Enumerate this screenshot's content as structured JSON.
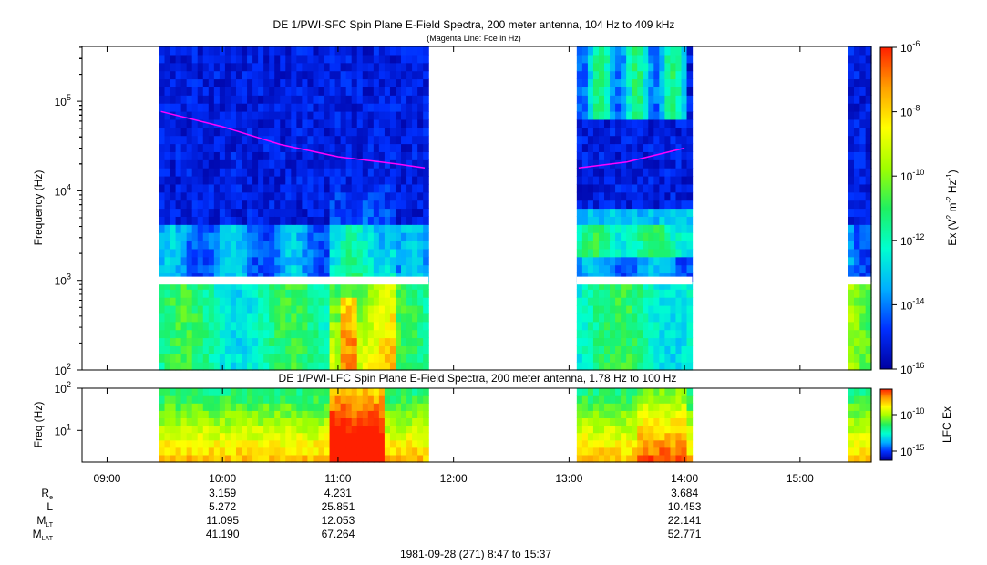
{
  "chart_data": [
    {
      "type": "heatmap",
      "title": "DE 1/PWI-SFC  Spin Plane E-Field Spectra, 200 meter antenna, 104 Hz to 409 kHz",
      "subtitle": "(Magenta Line: Fce in Hz)",
      "ylabel": "Frequency (Hz)",
      "yscale": "log",
      "ylim": [
        100,
        409000
      ],
      "y_ticks": [
        {
          "exp": "2"
        },
        {
          "exp": "3"
        },
        {
          "exp": "4"
        },
        {
          "exp": "5"
        }
      ],
      "y_tick_base": "10",
      "colorbar": {
        "label_main": "Ex (V",
        "label_sup1": "2",
        "label_mid": " m",
        "label_sup2": "-2",
        "label_mid2": " Hz",
        "label_sup3": "-1",
        "label_end": ")",
        "scale": "log",
        "range": [
          1e-16,
          1e-06
        ],
        "ticks": [
          {
            "exp": "-6"
          },
          {
            "exp": "-8"
          },
          {
            "exp": "-10"
          },
          {
            "exp": "-12"
          },
          {
            "exp": "-14"
          },
          {
            "exp": "-16"
          }
        ],
        "colors": [
          "#0000a0",
          "#0030ff",
          "#00b0ff",
          "#00ffd0",
          "#20f060",
          "#a0ff00",
          "#ffff00",
          "#ffa000",
          "#ff2000"
        ]
      },
      "data_intervals": [
        [
          "09:27",
          "11:47"
        ],
        [
          "13:04",
          "14:04"
        ],
        [
          "15:25",
          "15:37"
        ]
      ],
      "fce_line": {
        "name": "Fce",
        "color": "#ff00ff",
        "points": [
          {
            "time": "09:28",
            "hz": 77000
          },
          {
            "time": "10:00",
            "hz": 52000
          },
          {
            "time": "10:30",
            "hz": 33000
          },
          {
            "time": "11:00",
            "hz": 24000
          },
          {
            "time": "11:30",
            "hz": 20000
          },
          {
            "time": "11:45",
            "hz": 18000
          },
          {
            "time": "13:05",
            "hz": 18000
          },
          {
            "time": "13:30",
            "hz": 21000
          },
          {
            "time": "14:00",
            "hz": 30000
          }
        ]
      }
    },
    {
      "type": "heatmap",
      "title": "DE 1/PWI-LFC  Spin Plane E-Field Spectra, 200 meter antenna, 1.78 Hz to 100 Hz",
      "ylabel": "Freq (Hz)",
      "yscale": "log",
      "ylim": [
        1.78,
        100
      ],
      "y_ticks": [
        {
          "exp": "1"
        },
        {
          "exp": "2"
        }
      ],
      "y_tick_base": "10",
      "colorbar": {
        "label": "LFC Ex",
        "scale": "log",
        "ticks": [
          {
            "exp": "-10"
          },
          {
            "exp": "-15"
          }
        ]
      },
      "data_intervals": [
        [
          "09:27",
          "11:47"
        ],
        [
          "13:04",
          "14:04"
        ],
        [
          "15:25",
          "15:37"
        ]
      ]
    }
  ],
  "x_axis": {
    "ticks": [
      "09:00",
      "10:00",
      "11:00",
      "12:00",
      "13:00",
      "14:00",
      "15:00"
    ],
    "caption": "1981-09-28 (271) 8:47 to 15:37"
  },
  "ephemeris": {
    "rows": [
      {
        "label": "R",
        "sub": "e",
        "values": [
          "3.159",
          "4.231",
          "",
          "",
          "3.684",
          ""
        ]
      },
      {
        "label": "L",
        "sub": "",
        "values": [
          "5.272",
          "25.851",
          "",
          "",
          "10.453",
          ""
        ]
      },
      {
        "label": "M",
        "sub": "LT",
        "values": [
          "11.095",
          "12.053",
          "",
          "",
          "22.141",
          ""
        ]
      },
      {
        "label": "M",
        "sub": "LAT",
        "values": [
          "41.190",
          "67.264",
          "",
          "",
          "52.771",
          ""
        ]
      }
    ],
    "columns": [
      "10:00",
      "11:00",
      "12:00",
      "13:00",
      "14:00",
      "15:00"
    ]
  }
}
